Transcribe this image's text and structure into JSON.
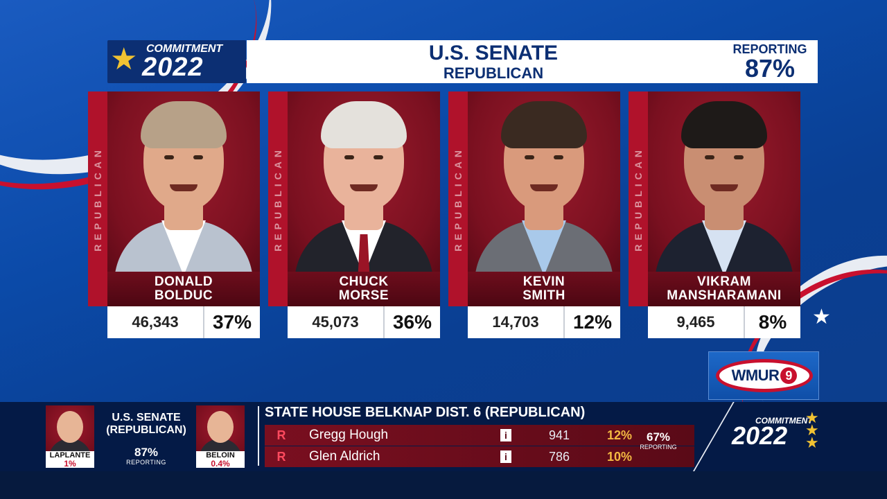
{
  "brand": {
    "commitment_label": "COMMITMENT",
    "year": "2022",
    "star_icon": "★"
  },
  "header": {
    "title": "U.S. SENATE",
    "subtitle": "REPUBLICAN",
    "reporting_label": "REPORTING",
    "reporting_pct": "87%"
  },
  "candidates": [
    {
      "party_strip": "REPUBLICAN",
      "first": "DONALD",
      "last": "BOLDUC",
      "votes": "46,343",
      "pct": "37%",
      "skin": "#e0a98a",
      "hair": "#b7a188",
      "shirt": "#b9c2cf",
      "collar": "#ffffff",
      "tie": ""
    },
    {
      "party_strip": "REPUBLICAN",
      "first": "CHUCK",
      "last": "MORSE",
      "votes": "45,073",
      "pct": "36%",
      "skin": "#e9b39b",
      "hair": "#e4e1dc",
      "shirt": "#22232b",
      "collar": "#ffffff",
      "tie": "#9a1426"
    },
    {
      "party_strip": "REPUBLICAN",
      "first": "KEVIN",
      "last": "SMITH",
      "votes": "14,703",
      "pct": "12%",
      "skin": "#d99a7c",
      "hair": "#3a2a21",
      "shirt": "#6b6e75",
      "collar": "#a9c9ea",
      "tie": ""
    },
    {
      "party_strip": "REPUBLICAN",
      "first": "VIKRAM",
      "last": "MANSHARAMANI",
      "votes": "9,465",
      "pct": "8%",
      "skin": "#c98e72",
      "hair": "#1e1a18",
      "shirt": "#1d2230",
      "collar": "#d6e2f2",
      "tie": ""
    }
  ],
  "logo": {
    "text": "WMUR",
    "channel": "9"
  },
  "ticker": {
    "left_race": {
      "title_line1": "U.S. SENATE",
      "title_line2": "(REPUBLICAN)",
      "reporting_pct": "87%",
      "reporting_label": "REPORTING",
      "cand_a": {
        "name": "LAPLANTE",
        "pct": "1%"
      },
      "cand_b": {
        "name": "BELOIN",
        "pct": "0.4%"
      }
    },
    "race_title": "STATE HOUSE BELKNAP DIST. 6 (REPUBLICAN)",
    "rows": [
      {
        "party": "R",
        "name": "Gregg Hough",
        "incumbent_icon": "i",
        "votes": "941",
        "pct": "12%"
      },
      {
        "party": "R",
        "name": "Glen Aldrich",
        "incumbent_icon": "i",
        "votes": "786",
        "pct": "10%"
      }
    ],
    "reporting_pct": "67%",
    "reporting_label": "REPORTING",
    "brand_commitment": "COMMITMENT",
    "brand_year": "2022"
  },
  "colors": {
    "navy": "#0c2f73",
    "republican_red": "#b0122b",
    "accent_gold": "#f1c232"
  }
}
